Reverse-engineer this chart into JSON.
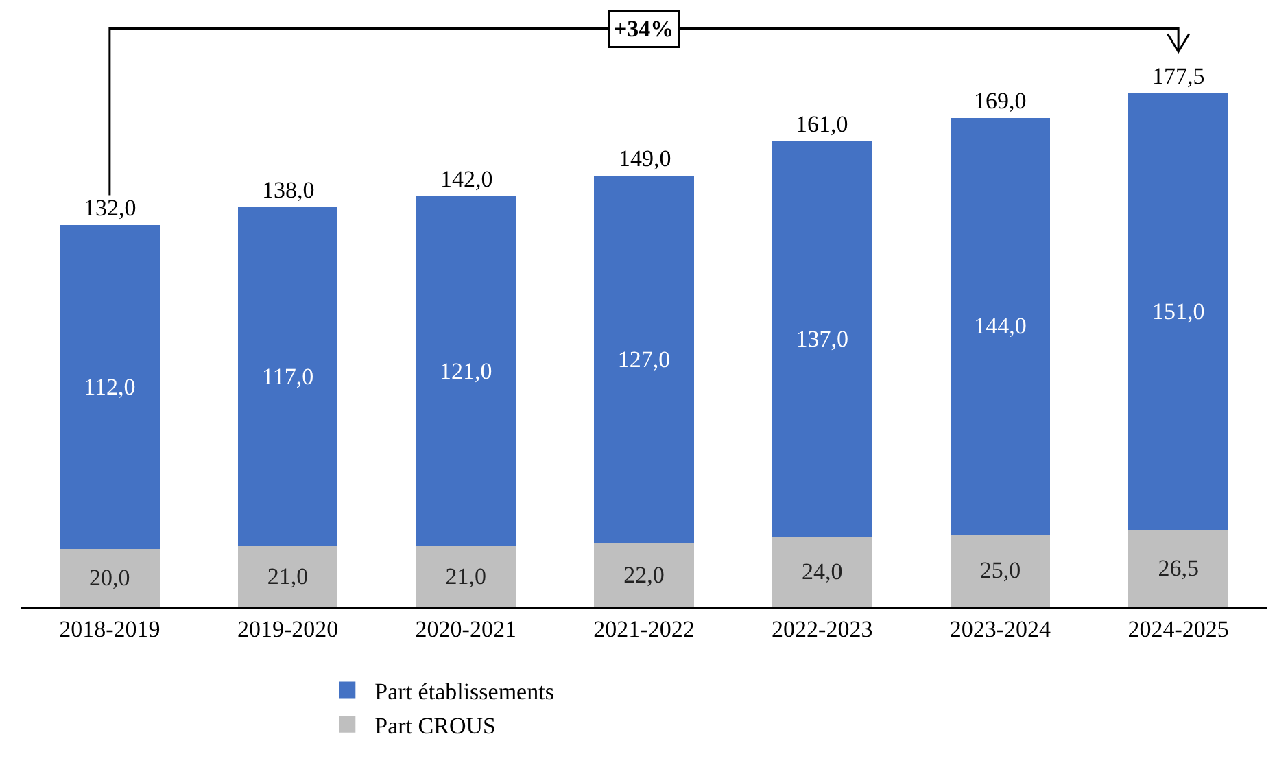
{
  "chart_data": {
    "type": "bar",
    "stacked": true,
    "categories": [
      "2018-2019",
      "2019-2020",
      "2020-2021",
      "2021-2022",
      "2022-2023",
      "2023-2024",
      "2024-2025"
    ],
    "series": [
      {
        "name": "Part CROUS",
        "color": "#bfbfbf",
        "values": [
          20,
          21,
          21,
          22,
          24,
          25,
          26.5
        ],
        "value_labels": [
          "20,0",
          "21,0",
          "21,0",
          "22,0",
          "24,0",
          "25,0",
          "26,5"
        ]
      },
      {
        "name": "Part établissements",
        "color": "#4472c4",
        "values": [
          112,
          117,
          121,
          127,
          137,
          144,
          151
        ],
        "value_labels": [
          "112,0",
          "117,0",
          "121,0",
          "127,0",
          "137,0",
          "144,0",
          "151,0"
        ]
      }
    ],
    "totals": [
      "132,0",
      "138,0",
      "142,0",
      "149,0",
      "161,0",
      "169,0",
      "177,5"
    ],
    "annotations": [
      "+34%"
    ],
    "ylim": [
      0,
      205
    ],
    "tick_labels": "x",
    "legend": "bottom"
  }
}
